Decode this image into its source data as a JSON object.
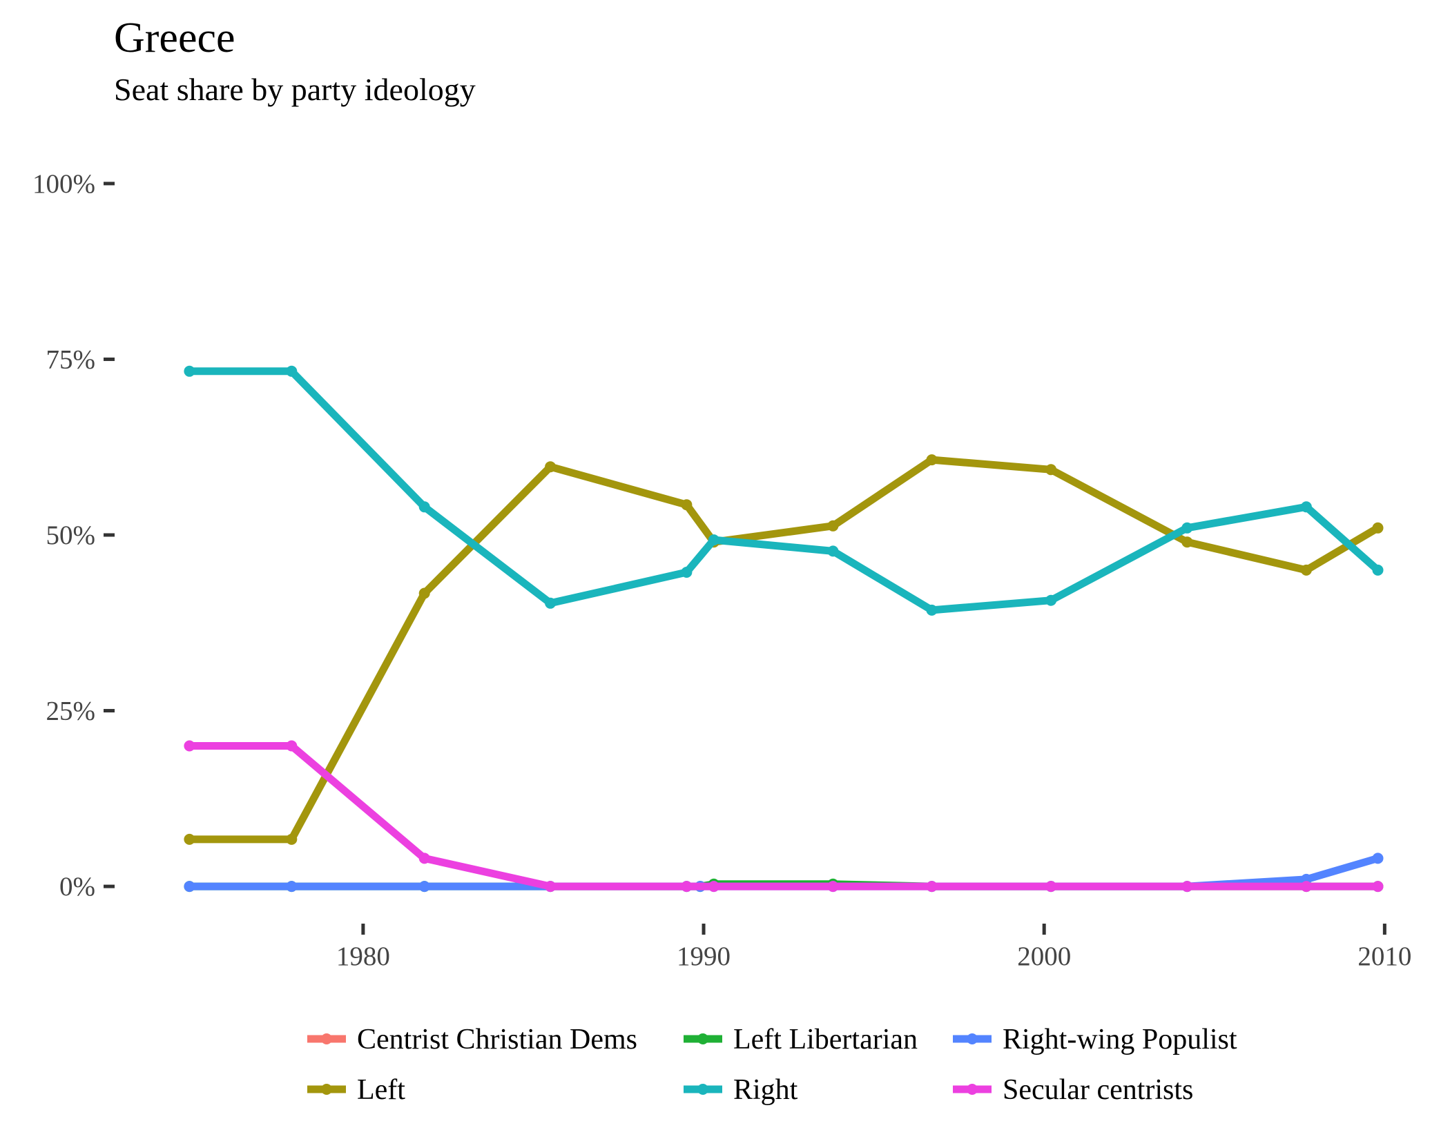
{
  "chart_data": {
    "type": "line",
    "title": "Greece",
    "subtitle": "Seat share by party ideology",
    "xlabel": "",
    "ylabel": "",
    "xlim": [
      1974.0,
      2010.5
    ],
    "ylim": [
      -0.05,
      1.05
    ],
    "x_ticks": [
      1980,
      1990,
      2000,
      2010
    ],
    "y_ticks": [
      0,
      0.25,
      0.5,
      0.75,
      1.0
    ],
    "y_tick_labels": [
      "0%",
      "25%",
      "50%",
      "75%",
      "100%"
    ],
    "grid": false,
    "legend_position": "bottom",
    "x": [
      1974.9,
      1977.9,
      1981.8,
      1985.5,
      1989.5,
      1989.9,
      1990.3,
      1993.8,
      1996.7,
      2000.2,
      2004.2,
      2007.7,
      2009.8
    ],
    "series": [
      {
        "name": "Centrist Christian Dems",
        "color": "#f8766d",
        "values": [
          null,
          null,
          null,
          null,
          null,
          null,
          null,
          null,
          null,
          null,
          null,
          null,
          null
        ]
      },
      {
        "name": "Left Libertarian",
        "color": "#1fb035",
        "values": [
          0,
          0,
          0,
          0,
          0,
          0,
          0.0033,
          0.0033,
          0,
          0,
          0,
          0,
          0
        ]
      },
      {
        "name": "Right-wing Populist",
        "color": "#5384ff",
        "values": [
          0,
          0,
          0,
          0,
          0,
          0,
          0,
          0,
          0,
          0,
          0,
          0.01,
          0.04
        ]
      },
      {
        "name": "Left",
        "color": "#a3960d",
        "values": [
          0.067,
          0.067,
          0.417,
          0.597,
          0.543,
          null,
          0.49,
          0.513,
          0.607,
          0.593,
          0.49,
          0.45,
          0.51
        ]
      },
      {
        "name": "Right",
        "color": "#1ab5bc",
        "values": [
          0.733,
          0.733,
          0.54,
          0.403,
          0.447,
          null,
          0.493,
          0.477,
          0.393,
          0.407,
          0.51,
          0.54,
          0.45
        ]
      },
      {
        "name": "Secular centrists",
        "color": "#ec40e0",
        "values": [
          0.2,
          0.2,
          0.04,
          0,
          0,
          null,
          0,
          0,
          0,
          0,
          0,
          0,
          0
        ]
      }
    ]
  }
}
